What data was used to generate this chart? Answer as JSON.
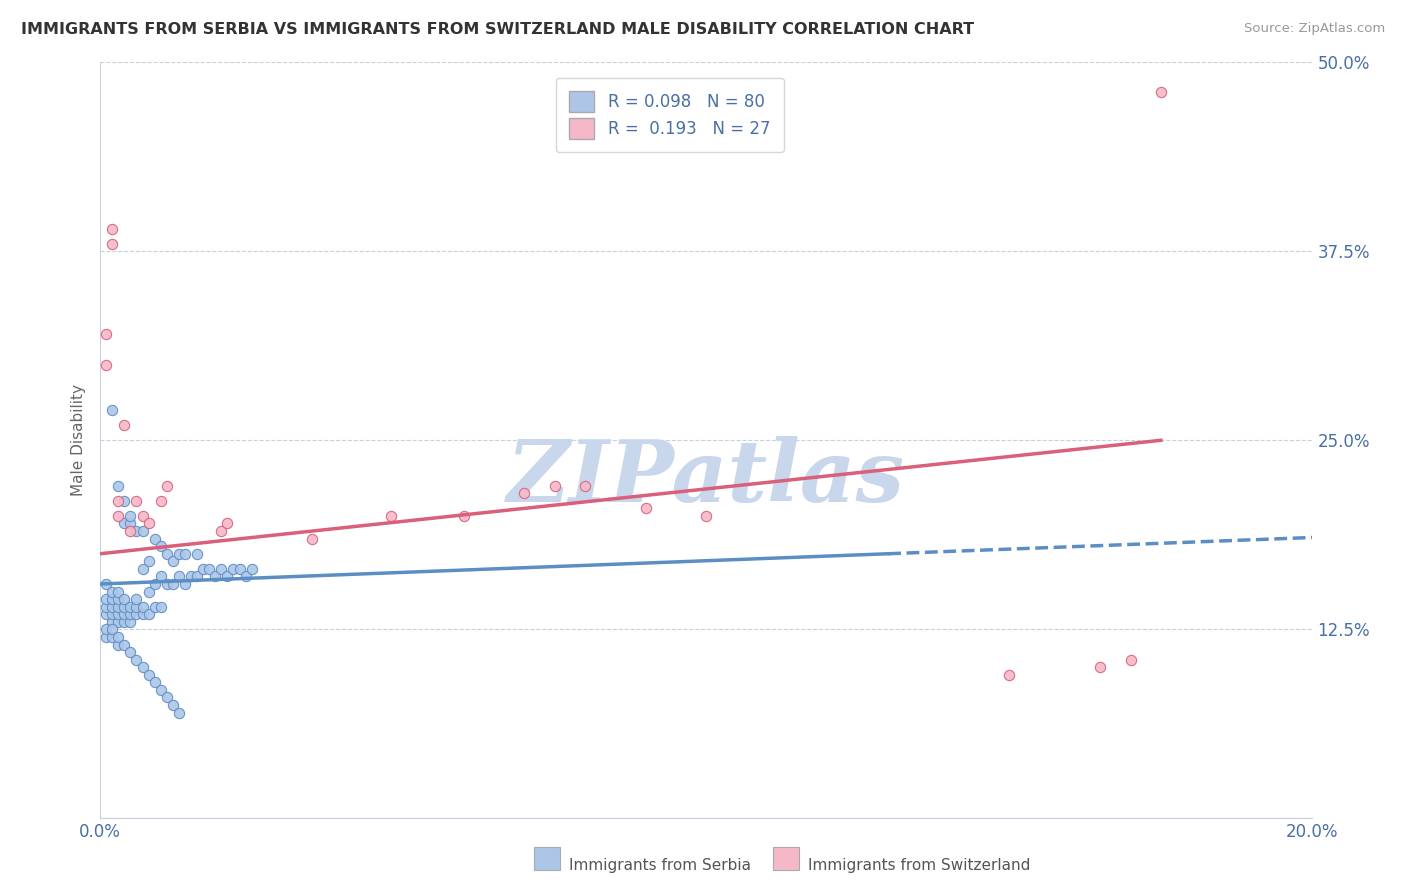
{
  "title": "IMMIGRANTS FROM SERBIA VS IMMIGRANTS FROM SWITZERLAND MALE DISABILITY CORRELATION CHART",
  "source": "Source: ZipAtlas.com",
  "xlabel_serbia": "Immigrants from Serbia",
  "xlabel_switzerland": "Immigrants from Switzerland",
  "ylabel": "Male Disability",
  "xlim": [
    0.0,
    0.2
  ],
  "ylim": [
    0.0,
    0.5
  ],
  "xticks": [
    0.0,
    0.04,
    0.08,
    0.12,
    0.16,
    0.2
  ],
  "xtick_labels_show": [
    "0.0%",
    "",
    "",
    "",
    "",
    "20.0%"
  ],
  "yticks": [
    0.0,
    0.125,
    0.25,
    0.375,
    0.5
  ],
  "ytick_labels": [
    "",
    "12.5%",
    "25.0%",
    "37.5%",
    "50.0%"
  ],
  "serbia_R": 0.098,
  "serbia_N": 80,
  "switzerland_R": 0.193,
  "switzerland_N": 27,
  "serbia_color": "#adc6e8",
  "switzerland_color": "#f5b8c8",
  "serbia_line_color": "#5b8ec4",
  "switzerland_line_color": "#d95f7a",
  "serbia_scatter_x": [
    0.001,
    0.001,
    0.001,
    0.001,
    0.002,
    0.002,
    0.002,
    0.002,
    0.002,
    0.003,
    0.003,
    0.003,
    0.003,
    0.003,
    0.004,
    0.004,
    0.004,
    0.004,
    0.004,
    0.005,
    0.005,
    0.005,
    0.005,
    0.006,
    0.006,
    0.006,
    0.006,
    0.007,
    0.007,
    0.007,
    0.007,
    0.008,
    0.008,
    0.008,
    0.009,
    0.009,
    0.009,
    0.01,
    0.01,
    0.01,
    0.011,
    0.011,
    0.012,
    0.012,
    0.013,
    0.013,
    0.014,
    0.014,
    0.015,
    0.016,
    0.016,
    0.017,
    0.018,
    0.019,
    0.02,
    0.021,
    0.022,
    0.023,
    0.024,
    0.025,
    0.001,
    0.001,
    0.002,
    0.002,
    0.003,
    0.003,
    0.004,
    0.005,
    0.006,
    0.007,
    0.008,
    0.009,
    0.01,
    0.011,
    0.012,
    0.013,
    0.002,
    0.003,
    0.004,
    0.005
  ],
  "serbia_scatter_y": [
    0.135,
    0.14,
    0.145,
    0.155,
    0.13,
    0.135,
    0.14,
    0.145,
    0.15,
    0.13,
    0.135,
    0.14,
    0.145,
    0.15,
    0.13,
    0.135,
    0.14,
    0.145,
    0.195,
    0.13,
    0.135,
    0.14,
    0.195,
    0.135,
    0.14,
    0.145,
    0.19,
    0.135,
    0.14,
    0.165,
    0.19,
    0.135,
    0.15,
    0.17,
    0.14,
    0.155,
    0.185,
    0.14,
    0.16,
    0.18,
    0.155,
    0.175,
    0.155,
    0.17,
    0.16,
    0.175,
    0.155,
    0.175,
    0.16,
    0.16,
    0.175,
    0.165,
    0.165,
    0.16,
    0.165,
    0.16,
    0.165,
    0.165,
    0.16,
    0.165,
    0.12,
    0.125,
    0.12,
    0.125,
    0.115,
    0.12,
    0.115,
    0.11,
    0.105,
    0.1,
    0.095,
    0.09,
    0.085,
    0.08,
    0.075,
    0.07,
    0.27,
    0.22,
    0.21,
    0.2
  ],
  "switzerland_scatter_x": [
    0.001,
    0.001,
    0.002,
    0.002,
    0.003,
    0.003,
    0.004,
    0.005,
    0.006,
    0.007,
    0.008,
    0.01,
    0.011,
    0.02,
    0.021,
    0.035,
    0.048,
    0.06,
    0.07,
    0.075,
    0.08,
    0.09,
    0.1,
    0.15,
    0.165,
    0.17,
    0.175
  ],
  "switzerland_scatter_y": [
    0.3,
    0.32,
    0.38,
    0.39,
    0.2,
    0.21,
    0.26,
    0.19,
    0.21,
    0.2,
    0.195,
    0.21,
    0.22,
    0.19,
    0.195,
    0.185,
    0.2,
    0.2,
    0.215,
    0.22,
    0.22,
    0.205,
    0.2,
    0.095,
    0.1,
    0.105,
    0.48
  ],
  "background_color": "#ffffff",
  "watermark": "ZIPatlas",
  "watermark_color_r": 200,
  "watermark_color_g": 215,
  "watermark_color_b": 235,
  "grid_color": "#c8d0de"
}
